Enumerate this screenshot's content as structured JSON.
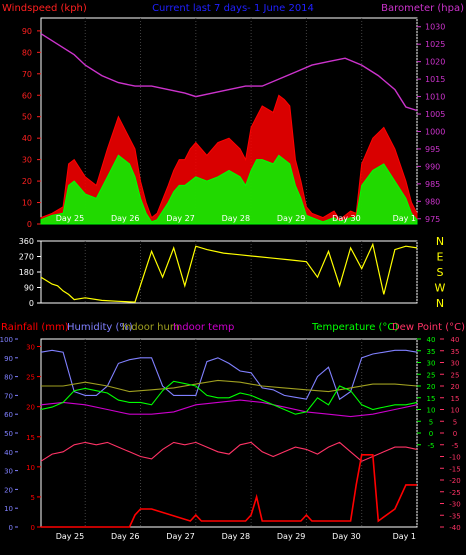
{
  "colors": {
    "background": "#000000",
    "frame": "#ffffff",
    "grid": "#404040",
    "windspeed": "#ff2020",
    "gust": "#ff0000",
    "avg_wind": "#00ff00",
    "barometer": "#cc33cc",
    "direction": "#ffff00",
    "rainfall": "#ff0000",
    "humidity": "#8080ff",
    "indoor_hum": "#a0a020",
    "indoor_temp": "#cc00cc",
    "temperature": "#00ff00",
    "dew_point": "#ff3366",
    "title": "#2020ff"
  },
  "days": [
    "Day 25",
    "Day 26",
    "Day 27",
    "Day 28",
    "Day 29",
    "Day 30",
    "Day 1"
  ],
  "chart_data": [
    {
      "type": "line",
      "panel": "wind",
      "title": "Current last 7 days- 1 June 2014",
      "left_label": "Windspeed (kph)",
      "right_label": "Barometer (hpa)",
      "left_ticks": [
        "0",
        "10",
        "20",
        "30",
        "40",
        "50",
        "60",
        "70",
        "80",
        "90"
      ],
      "right_ticks": [
        "975",
        "980",
        "985",
        "990",
        "995",
        "1000",
        "1005",
        "1010",
        "1015",
        "1020",
        "1025",
        "1030"
      ],
      "ylim_left": [
        0,
        96
      ],
      "ylim_right": [
        973.5,
        1032.5
      ],
      "x_range_days": [
        24.2,
        31.0
      ],
      "series": [
        {
          "key": "gust",
          "color": "#ff0000",
          "x": [
            24.2,
            24.4,
            24.6,
            24.7,
            24.8,
            25.0,
            25.2,
            25.4,
            25.6,
            25.8,
            25.9,
            26.0,
            26.1,
            26.2,
            26.3,
            26.5,
            26.6,
            26.7,
            26.8,
            26.9,
            27.0,
            27.2,
            27.4,
            27.6,
            27.8,
            27.9,
            28.0,
            28.1,
            28.2,
            28.4,
            28.5,
            28.6,
            28.7,
            28.8,
            28.9,
            29.0,
            29.1,
            29.3,
            29.5,
            29.6,
            29.7,
            29.8,
            29.9,
            30.0,
            30.2,
            30.4,
            30.6,
            30.8,
            30.9,
            31.0
          ],
          "y": [
            3,
            5,
            8,
            28,
            30,
            22,
            18,
            35,
            50,
            40,
            35,
            20,
            10,
            3,
            5,
            18,
            25,
            30,
            30,
            35,
            38,
            32,
            38,
            40,
            35,
            30,
            45,
            50,
            55,
            52,
            60,
            58,
            55,
            30,
            20,
            8,
            5,
            3,
            6,
            2,
            4,
            6,
            5,
            28,
            40,
            45,
            35,
            20,
            10,
            5
          ]
        },
        {
          "key": "avg_wind",
          "color": "#00ff00",
          "x": [
            24.2,
            24.4,
            24.6,
            24.7,
            24.8,
            25.0,
            25.2,
            25.4,
            25.6,
            25.8,
            25.9,
            26.0,
            26.1,
            26.2,
            26.3,
            26.5,
            26.6,
            26.7,
            26.8,
            26.9,
            27.0,
            27.2,
            27.4,
            27.6,
            27.8,
            27.9,
            28.0,
            28.1,
            28.2,
            28.4,
            28.5,
            28.6,
            28.7,
            28.8,
            28.9,
            29.0,
            29.1,
            29.3,
            29.5,
            29.6,
            29.7,
            29.8,
            29.9,
            30.0,
            30.2,
            30.4,
            30.6,
            30.8,
            30.9,
            31.0
          ],
          "y": [
            2,
            4,
            5,
            18,
            20,
            14,
            12,
            22,
            32,
            28,
            22,
            12,
            5,
            1,
            2,
            10,
            15,
            18,
            18,
            20,
            22,
            20,
            22,
            25,
            22,
            18,
            25,
            30,
            30,
            28,
            32,
            30,
            28,
            18,
            12,
            4,
            3,
            1,
            3,
            1,
            2,
            3,
            3,
            18,
            25,
            28,
            20,
            12,
            5,
            2
          ]
        },
        {
          "key": "barometer",
          "axis": "right",
          "color": "#cc33cc",
          "x": [
            24.2,
            24.5,
            24.8,
            25.0,
            25.3,
            25.6,
            25.9,
            26.2,
            26.5,
            26.8,
            27.0,
            27.3,
            27.6,
            27.9,
            28.2,
            28.5,
            28.8,
            29.1,
            29.4,
            29.7,
            30.0,
            30.3,
            30.6,
            30.8,
            31.0
          ],
          "y": [
            1028,
            1025,
            1022,
            1019,
            1016,
            1014,
            1013,
            1013,
            1012,
            1011,
            1010,
            1011,
            1012,
            1013,
            1013,
            1015,
            1017,
            1019,
            1020,
            1021,
            1019,
            1016,
            1012,
            1007,
            1006
          ]
        }
      ]
    },
    {
      "type": "line",
      "panel": "direction",
      "left_ticks": [
        "0",
        "90",
        "180",
        "270",
        "360"
      ],
      "right_ticks": [
        "N",
        "W",
        "S",
        "E",
        "N"
      ],
      "ylim": [
        0,
        360
      ],
      "series": [
        {
          "key": "direction",
          "color": "#ffff00",
          "x": [
            24.2,
            24.3,
            24.4,
            24.5,
            24.6,
            24.7,
            24.8,
            25.0,
            25.3,
            25.6,
            25.9,
            26.2,
            26.4,
            26.6,
            26.8,
            27.0,
            27.2,
            27.5,
            27.8,
            28.1,
            28.4,
            28.7,
            29.0,
            29.2,
            29.4,
            29.6,
            29.8,
            30.0,
            30.2,
            30.4,
            30.6,
            30.8,
            31.0
          ],
          "y": [
            150,
            130,
            110,
            100,
            70,
            50,
            20,
            30,
            15,
            10,
            5,
            300,
            150,
            320,
            100,
            330,
            310,
            290,
            280,
            270,
            260,
            250,
            240,
            150,
            300,
            100,
            320,
            200,
            340,
            50,
            310,
            330,
            320
          ]
        }
      ]
    },
    {
      "type": "line",
      "panel": "temperature",
      "legend": [
        "Rainfall (mm)",
        "Humidity (%)",
        "Indoor hum",
        "Indoor temp",
        "Temperature (°C)",
        "Dew Point (°C)"
      ],
      "left_ticks_rain": [
        "0",
        "5",
        "10",
        "15",
        "20",
        "25",
        "30"
      ],
      "left_ticks_hum": [
        "0",
        "10",
        "20",
        "30",
        "40",
        "50",
        "60",
        "70",
        "80",
        "90",
        "100"
      ],
      "right_ticks_temp": [
        "-5",
        "0",
        "5",
        "10",
        "15",
        "20",
        "25",
        "30",
        "35",
        "40"
      ],
      "right_ticks_dew": [
        "-40",
        "-35",
        "-30",
        "-25",
        "-20",
        "-15",
        "-10",
        "-5",
        "0",
        "5",
        "10",
        "15",
        "20",
        "25",
        "30",
        "35",
        "40"
      ],
      "ylim_humidity": [
        0,
        100
      ],
      "ylim_temperature": [
        -40,
        40
      ],
      "series": [
        {
          "key": "humidity",
          "color": "#8080ff",
          "x": [
            24.2,
            24.4,
            24.6,
            24.8,
            25.0,
            25.2,
            25.4,
            25.6,
            25.8,
            26.0,
            26.2,
            26.4,
            26.6,
            26.8,
            27.0,
            27.2,
            27.4,
            27.6,
            27.8,
            28.0,
            28.2,
            28.4,
            28.6,
            28.8,
            29.0,
            29.2,
            29.4,
            29.6,
            29.8,
            30.0,
            30.2,
            30.4,
            30.6,
            30.8,
            31.0
          ],
          "y": [
            93,
            94,
            93,
            72,
            70,
            70,
            75,
            87,
            89,
            90,
            90,
            75,
            70,
            70,
            70,
            88,
            90,
            87,
            83,
            82,
            74,
            73,
            70,
            69,
            68,
            80,
            85,
            68,
            72,
            90,
            92,
            93,
            94,
            94,
            93
          ]
        },
        {
          "key": "indoor_hum",
          "color": "#a0a020",
          "x": [
            24.2,
            24.6,
            25.0,
            25.4,
            25.8,
            26.2,
            26.6,
            27.0,
            27.4,
            27.8,
            28.2,
            28.6,
            29.0,
            29.4,
            29.8,
            30.2,
            30.6,
            31.0
          ],
          "y": [
            75,
            75,
            77,
            75,
            72,
            73,
            74,
            76,
            78,
            77,
            75,
            74,
            73,
            72,
            74,
            76,
            76,
            75
          ]
        },
        {
          "key": "indoor_temp",
          "color": "#cc00cc",
          "x": [
            24.2,
            24.6,
            25.0,
            25.4,
            25.8,
            26.2,
            26.6,
            27.0,
            27.4,
            27.8,
            28.2,
            28.6,
            29.0,
            29.4,
            29.8,
            30.2,
            30.6,
            31.0
          ],
          "y": [
            12,
            13,
            12,
            10,
            8,
            8,
            9,
            12,
            13,
            14,
            13,
            11,
            9,
            8,
            7,
            8,
            10,
            12
          ]
        },
        {
          "key": "temperature",
          "color": "#00ff00",
          "x": [
            24.2,
            24.4,
            24.6,
            24.8,
            25.0,
            25.2,
            25.4,
            25.6,
            25.8,
            26.0,
            26.2,
            26.4,
            26.6,
            26.8,
            27.0,
            27.2,
            27.4,
            27.6,
            27.8,
            28.0,
            28.2,
            28.4,
            28.6,
            28.8,
            29.0,
            29.2,
            29.4,
            29.6,
            29.8,
            30.0,
            30.2,
            30.4,
            30.6,
            30.8,
            31.0
          ],
          "y": [
            10,
            11,
            13,
            18,
            19,
            18,
            17,
            14,
            13,
            13,
            12,
            18,
            22,
            21,
            20,
            16,
            15,
            15,
            17,
            16,
            14,
            12,
            10,
            8,
            9,
            15,
            12,
            20,
            18,
            12,
            10,
            11,
            12,
            12,
            13
          ]
        },
        {
          "key": "dew_point",
          "color": "#ff3366",
          "x": [
            24.2,
            24.4,
            24.6,
            24.8,
            25.0,
            25.2,
            25.4,
            25.6,
            25.8,
            26.0,
            26.2,
            26.4,
            26.6,
            26.8,
            27.0,
            27.2,
            27.4,
            27.6,
            27.8,
            28.0,
            28.2,
            28.4,
            28.6,
            28.8,
            29.0,
            29.2,
            29.4,
            29.6,
            29.8,
            30.0,
            30.2,
            30.4,
            30.6,
            30.8,
            31.0
          ],
          "y": [
            -12,
            -9,
            -8,
            -5,
            -4,
            -5,
            -4,
            -6,
            -8,
            -10,
            -11,
            -7,
            -4,
            -5,
            -4,
            -6,
            -8,
            -9,
            -5,
            -4,
            -8,
            -10,
            -8,
            -6,
            -7,
            -9,
            -6,
            -4,
            -8,
            -12,
            -10,
            -8,
            -6,
            -6,
            -7
          ]
        },
        {
          "key": "rainfall",
          "color": "#ff0000",
          "x": [
            24.2,
            25.0,
            25.8,
            25.9,
            26.0,
            26.2,
            26.9,
            27.0,
            27.1,
            27.9,
            28.0,
            28.1,
            28.2,
            28.9,
            29.0,
            29.1,
            29.5,
            29.8,
            29.9,
            30.0,
            30.2,
            30.3,
            30.6,
            30.7,
            30.8,
            31.0
          ],
          "y": [
            0,
            0,
            0,
            2,
            3,
            3,
            1,
            2,
            1,
            1,
            2,
            5,
            1,
            1,
            2,
            1,
            1,
            1,
            7,
            12,
            12,
            1,
            3,
            5,
            7,
            7
          ]
        }
      ]
    }
  ]
}
